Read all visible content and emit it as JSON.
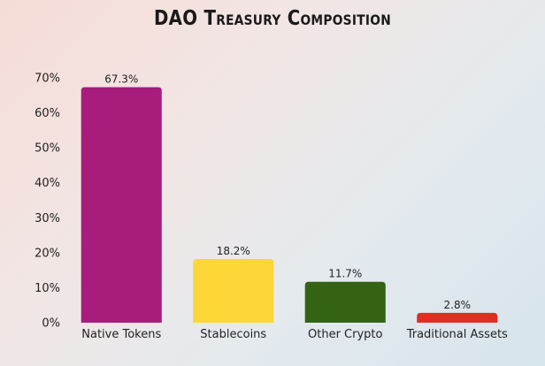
{
  "chart_data": {
    "type": "bar",
    "title": "DAO Treasury Composition",
    "xlabel": "",
    "ylabel": "",
    "categories": [
      "Native Tokens",
      "Stablecoins",
      "Other Crypto",
      "Traditional Assets"
    ],
    "values": [
      67.3,
      18.2,
      11.7,
      2.8
    ],
    "data_labels": [
      "67.3%",
      "18.2%",
      "11.7%",
      "2.8%"
    ],
    "colors": [
      "#a81c7c",
      "#fdd638",
      "#346314",
      "#e02f20"
    ],
    "ylim": [
      0,
      70
    ],
    "yticks": [
      0,
      10,
      20,
      30,
      40,
      50,
      60,
      70
    ],
    "ytick_labels": [
      "0%",
      "10%",
      "20%",
      "30%",
      "40%",
      "50%",
      "60%",
      "70%"
    ],
    "grid": false,
    "legend": false
  }
}
